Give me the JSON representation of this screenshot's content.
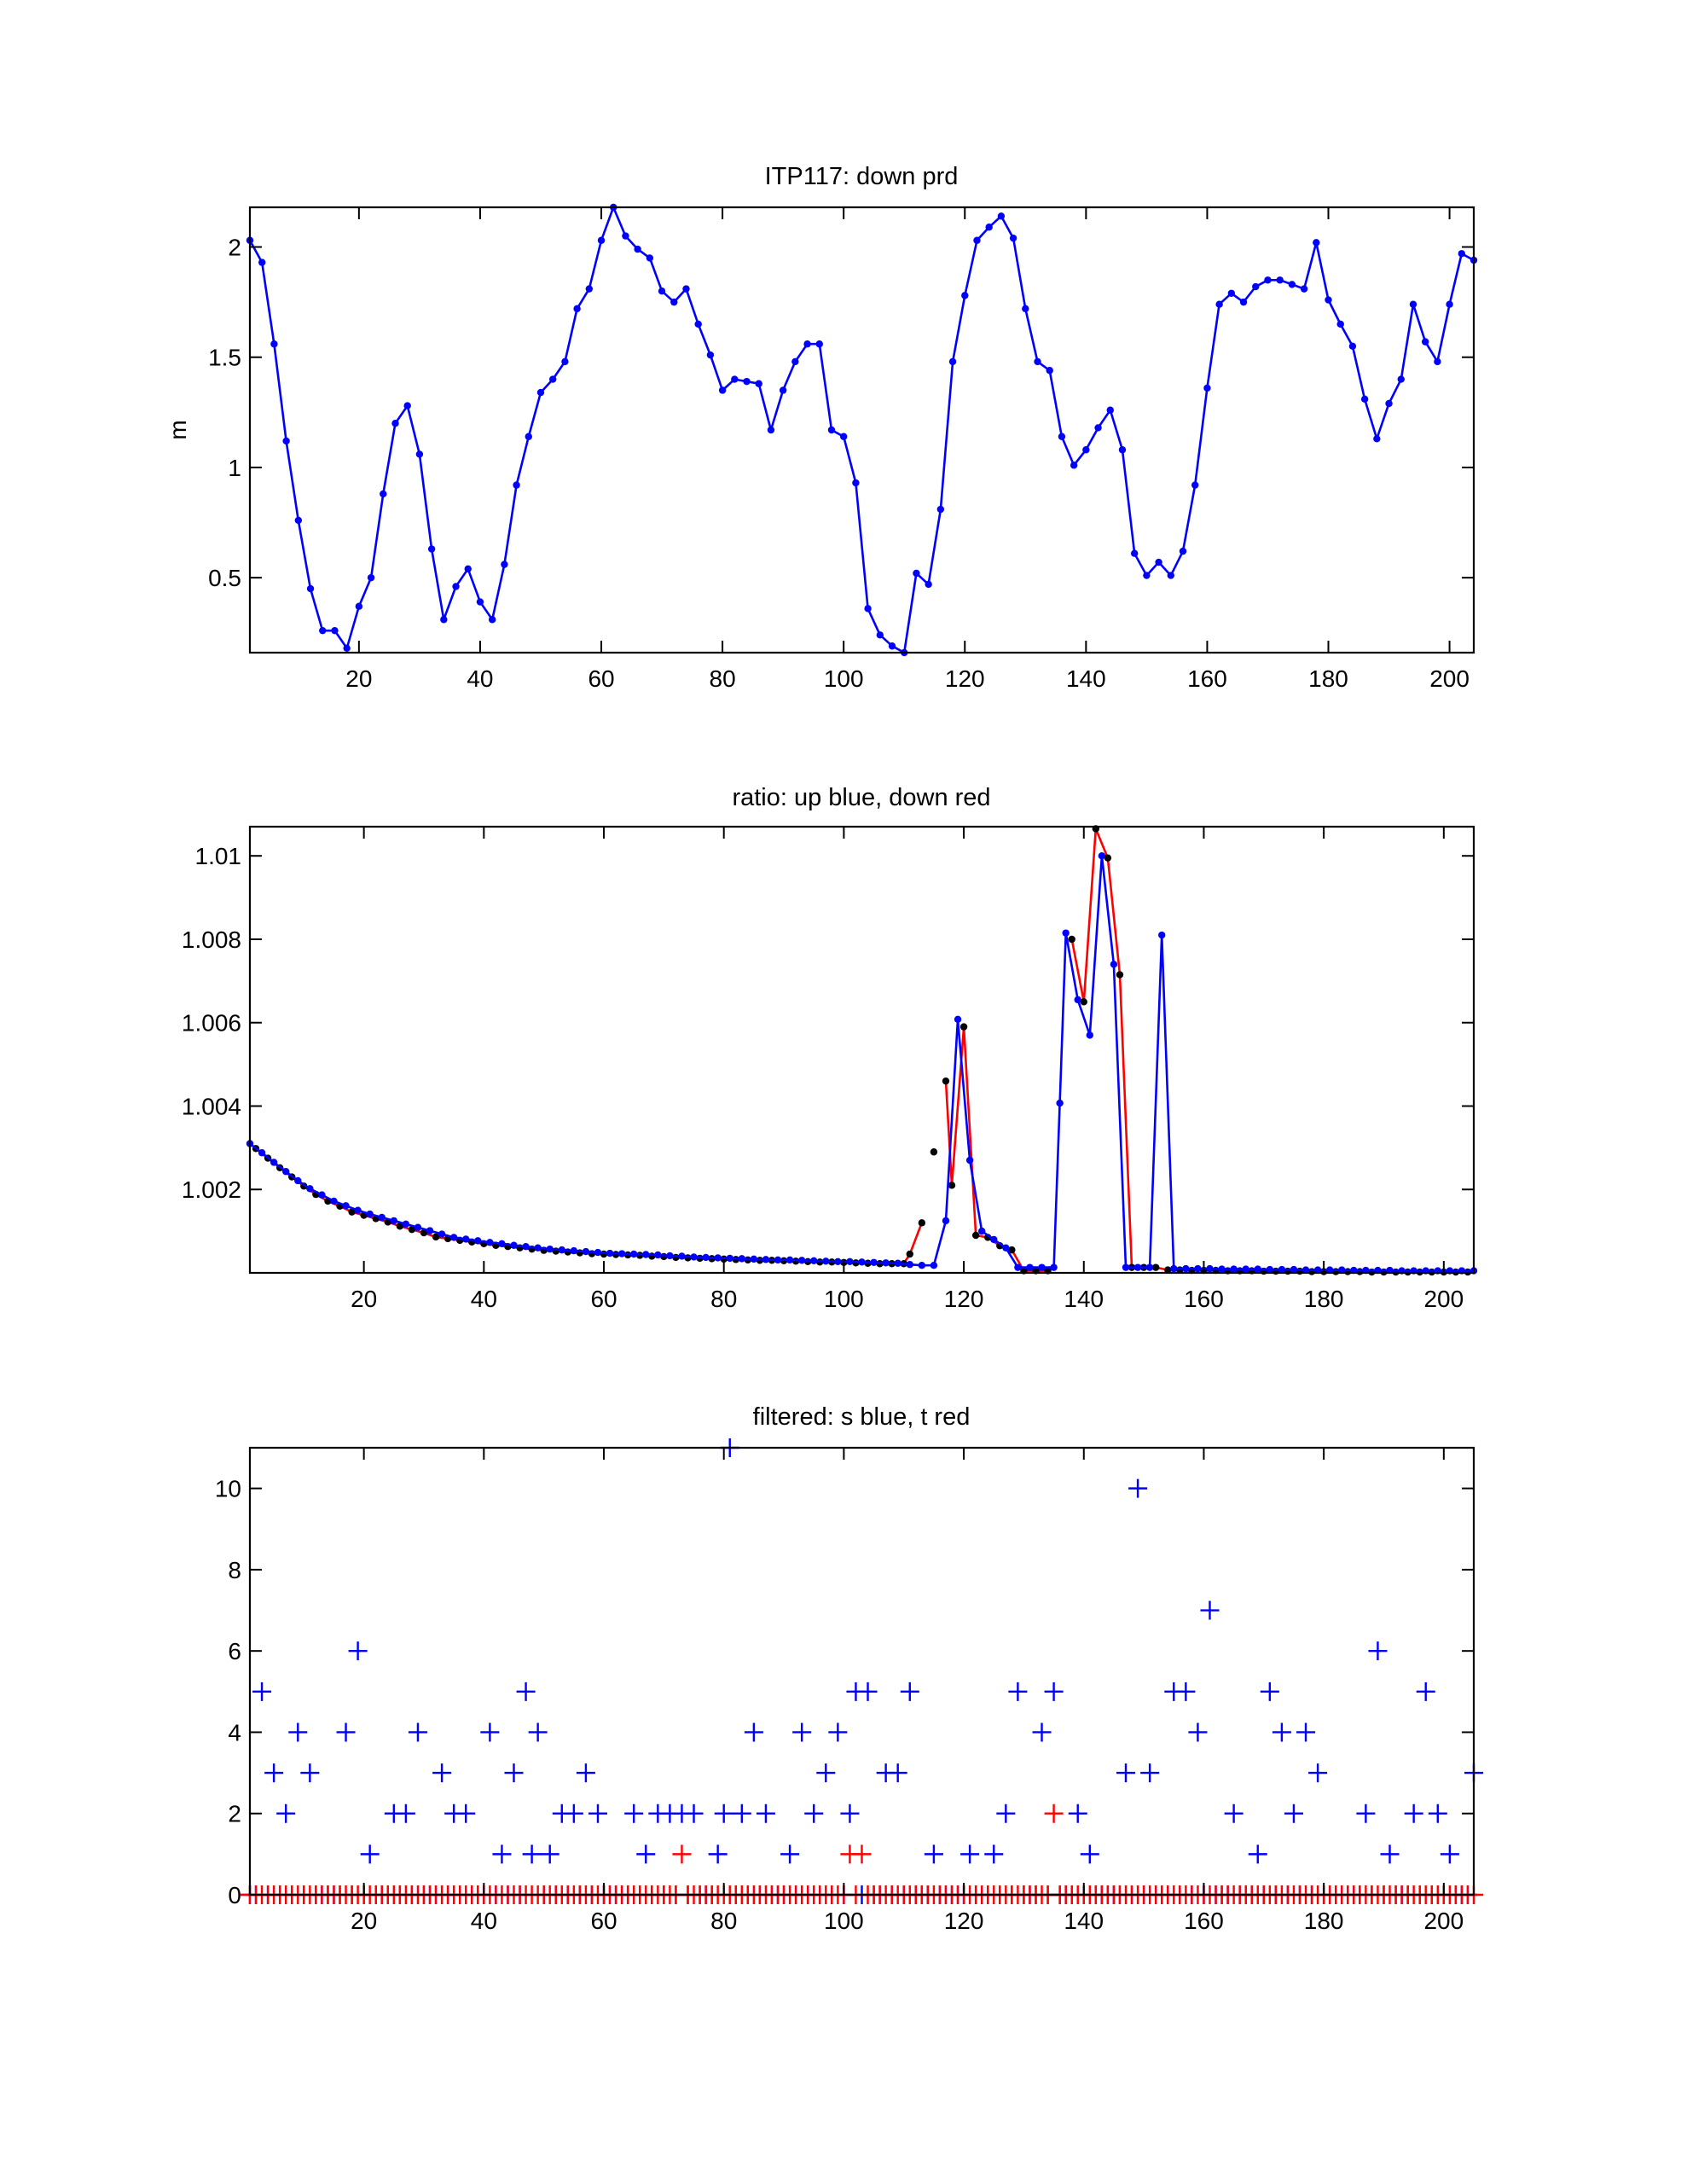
{
  "chart_data": [
    {
      "type": "line",
      "title": "ITP117: down prd",
      "ylabel": "m",
      "xlim": [
        2,
        204
      ],
      "ylim": [
        0.16,
        2.18
      ],
      "xticks": [
        20,
        40,
        60,
        80,
        100,
        120,
        140,
        160,
        180,
        200
      ],
      "yticks": [
        0.5,
        1,
        1.5,
        2
      ],
      "ytick_labels": [
        "0.5",
        "1",
        "1.5",
        "2"
      ],
      "grid": false,
      "series": [
        {
          "color": "#0000ff",
          "marker": "dot",
          "x": [
            2,
            4,
            6,
            8,
            10,
            12,
            14,
            16,
            18,
            20,
            22,
            24,
            26,
            28,
            30,
            32,
            34,
            36,
            38,
            40,
            42,
            44,
            46,
            48,
            50,
            52,
            54,
            56,
            58,
            60,
            62,
            64,
            66,
            68,
            70,
            72,
            74,
            76,
            78,
            80,
            82,
            84,
            86,
            88,
            90,
            92,
            94,
            96,
            98,
            100,
            102,
            104,
            106,
            108,
            110,
            112,
            114,
            116,
            118,
            120,
            122,
            124,
            126,
            128,
            130,
            132,
            134,
            136,
            138,
            140,
            142,
            144,
            146,
            148,
            150,
            152,
            154,
            156,
            158,
            160,
            162,
            164,
            166,
            168,
            170,
            172,
            174,
            176,
            178,
            180,
            182,
            184,
            186,
            188,
            190,
            192,
            194,
            196,
            198,
            200,
            202,
            204
          ],
          "y": [
            2.03,
            1.93,
            1.56,
            1.12,
            0.76,
            0.45,
            0.26,
            0.26,
            0.18,
            0.37,
            0.5,
            0.88,
            1.2,
            1.28,
            1.06,
            0.63,
            0.31,
            0.46,
            0.54,
            0.39,
            0.31,
            0.56,
            0.92,
            1.14,
            1.34,
            1.4,
            1.48,
            1.72,
            1.81,
            2.03,
            2.18,
            2.05,
            1.99,
            1.95,
            1.8,
            1.75,
            1.81,
            1.65,
            1.51,
            1.35,
            1.4,
            1.39,
            1.38,
            1.17,
            1.35,
            1.48,
            1.56,
            1.56,
            1.17,
            1.14,
            0.93,
            0.36,
            0.24,
            0.19,
            0.16,
            0.52,
            0.47,
            0.81,
            1.48,
            1.78,
            2.03,
            2.09,
            2.14,
            2.04,
            1.72,
            1.48,
            1.44,
            1.14,
            1.01,
            1.08,
            1.18,
            1.26,
            1.08,
            0.61,
            0.51,
            0.57,
            0.51,
            0.62,
            0.92,
            1.36,
            1.74,
            1.79,
            1.75,
            1.82,
            1.85,
            1.85,
            1.83,
            1.81,
            2.02,
            1.76,
            1.65,
            1.55,
            1.31,
            1.13,
            1.29,
            1.4,
            1.74,
            1.57,
            1.48,
            1.74,
            1.97,
            1.94
          ]
        }
      ]
    },
    {
      "type": "line",
      "title": "ratio: up blue, down red",
      "xlim": [
        1,
        205
      ],
      "ylim": [
        1.0,
        1.0107
      ],
      "xticks": [
        20,
        40,
        60,
        80,
        100,
        120,
        140,
        160,
        180,
        200
      ],
      "yticks": [
        1.002,
        1.004,
        1.006,
        1.008,
        1.01
      ],
      "ytick_labels": [
        "1.002",
        "1.004",
        "1.006",
        "1.008",
        "1.01"
      ],
      "grid": false,
      "series": [
        {
          "color": "#ff0000",
          "marker_color": "#000000",
          "marker": "dot",
          "x": [
            2,
            4,
            6,
            8,
            10,
            12,
            14,
            16,
            18,
            20,
            22,
            24,
            26,
            28,
            30,
            32,
            34,
            36,
            38,
            40,
            42,
            44,
            46,
            48,
            50,
            52,
            54,
            56,
            58,
            60,
            62,
            64,
            66,
            68,
            70,
            72,
            74,
            76,
            78,
            80,
            82,
            84,
            86,
            88,
            90,
            92,
            94,
            96,
            98,
            100,
            102,
            104,
            106,
            108,
            110,
            111,
            113,
            114,
            115,
            116,
            117,
            118,
            120,
            122,
            124,
            126,
            128,
            130,
            132,
            134,
            136,
            138,
            140,
            142,
            144,
            146,
            148,
            150,
            152,
            154,
            156,
            158,
            160,
            162,
            164,
            166,
            168,
            170,
            172,
            174,
            176,
            178,
            180,
            182,
            184,
            186,
            188,
            190,
            192,
            194,
            196,
            198,
            200,
            202,
            204
          ],
          "y": [
            1.00298,
            1.00275,
            1.00252,
            1.0023,
            1.00208,
            1.00188,
            1.00172,
            1.0016,
            1.00146,
            1.00138,
            1.0013,
            1.00122,
            1.00112,
            1.00104,
            1.00096,
            1.00086,
            1.00082,
            1.00078,
            1.00074,
            1.0007,
            1.00066,
            1.00063,
            1.0006,
            1.00057,
            1.00054,
            1.00052,
            1.0005,
            1.00048,
            1.00046,
            1.00045,
            1.00044,
            1.00043,
            1.00042,
            1.0004,
            1.00039,
            1.00037,
            1.00036,
            1.00035,
            1.00034,
            1.00033,
            1.00032,
            1.00031,
            1.0003,
            1.0003,
            1.00029,
            1.00028,
            1.00027,
            1.00026,
            1.00026,
            1.00025,
            1.00024,
            1.00023,
            1.00022,
            1.00022,
            1.00022,
            1.00045,
            1.0012,
            null,
            1.0029,
            null,
            1.0046,
            1.0021,
            1.0059,
            1.0009,
            1.00085,
            1.00065,
            1.00055,
            1.00005,
            1.00005,
            1.00005,
            null,
            1.008,
            1.0065,
            1.01065,
            1.00995,
            1.00715,
            1.00013,
            1.00013,
            1.00013,
            1.00007,
            1.00007,
            1.00006,
            1.00006,
            1.00006,
            1.00005,
            1.00005,
            1.00005,
            1.00004,
            1.00004,
            1.00004,
            1.00004,
            1.00003,
            1.00003,
            1.00003,
            1.00003,
            1.00003,
            1.00002,
            1.00002,
            1.00002,
            1.00002,
            1.00002,
            1.00002,
            1.00002,
            1.00002,
            1.00002
          ]
        },
        {
          "color": "#0000ff",
          "marker_color": "#0000ff",
          "marker": "dot",
          "x": [
            1,
            3,
            5,
            7,
            9,
            11,
            13,
            15,
            17,
            19,
            21,
            23,
            25,
            27,
            29,
            31,
            33,
            35,
            37,
            39,
            41,
            43,
            45,
            47,
            49,
            51,
            53,
            55,
            57,
            59,
            61,
            63,
            65,
            67,
            69,
            71,
            73,
            75,
            77,
            79,
            81,
            83,
            85,
            87,
            89,
            91,
            93,
            95,
            97,
            99,
            101,
            103,
            105,
            107,
            109,
            111,
            113,
            115,
            117,
            119,
            121,
            123,
            125,
            127,
            129,
            131,
            133,
            135,
            136,
            137,
            139,
            141,
            143,
            145,
            147,
            149,
            151,
            153,
            155,
            157,
            159,
            161,
            163,
            165,
            167,
            169,
            171,
            173,
            175,
            177,
            179,
            181,
            183,
            185,
            187,
            189,
            191,
            193,
            195,
            197,
            199,
            201,
            203,
            205
          ],
          "y": [
            1.0031,
            1.00288,
            1.00265,
            1.00243,
            1.00221,
            1.00202,
            1.00187,
            1.00172,
            1.00161,
            1.0015,
            1.00141,
            1.00133,
            1.00125,
            1.00117,
            1.00109,
            1.00101,
            1.00093,
            1.00085,
            1.00081,
            1.00077,
            1.00073,
            1.0007,
            1.00066,
            1.00063,
            1.0006,
            1.00057,
            1.00055,
            1.00053,
            1.00051,
            1.00049,
            1.00047,
            1.00046,
            1.00045,
            1.00044,
            1.00043,
            1.00041,
            1.0004,
            1.00038,
            1.00037,
            1.00036,
            1.00035,
            1.00034,
            1.00033,
            1.00032,
            1.00031,
            1.00031,
            1.0003,
            1.00029,
            1.00028,
            1.00027,
            1.00027,
            1.00026,
            1.00025,
            1.00024,
            1.00023,
            1.0002,
            1.00018,
            1.00018,
            1.00125,
            1.00608,
            1.0027,
            1.001,
            1.0008,
            1.0006,
            1.00013,
            1.00013,
            1.00013,
            1.00013,
            1.00407,
            1.00815,
            1.00655,
            1.0057,
            1.01,
            1.0074,
            1.00013,
            1.00013,
            1.00013,
            1.0081,
            1.0001,
            1.0001,
            1.0001,
            1.0001,
            1.00009,
            1.00009,
            1.00009,
            1.00009,
            1.00008,
            1.00008,
            1.00008,
            1.00007,
            1.00007,
            1.00007,
            1.00007,
            1.00006,
            1.00006,
            1.00006,
            1.00006,
            1.00005,
            1.00005,
            1.00005,
            1.00005,
            1.00005,
            1.00005,
            1.00005
          ]
        }
      ]
    },
    {
      "type": "scatter",
      "title": "filtered: s blue, t red",
      "xlim": [
        1,
        205
      ],
      "ylim": [
        0,
        11
      ],
      "xticks": [
        20,
        40,
        60,
        80,
        100,
        120,
        140,
        160,
        180,
        200
      ],
      "yticks": [
        0,
        2,
        4,
        6,
        8,
        10
      ],
      "ytick_labels": [
        "0",
        "2",
        "4",
        "6",
        "8",
        "10"
      ],
      "grid": false,
      "marker": "plus",
      "x_start": 1,
      "series": [
        {
          "color": "#0000ff",
          "values": [
            0,
            0,
            5,
            0,
            3,
            0,
            2,
            0,
            4,
            0,
            3,
            0,
            0,
            0,
            0,
            0,
            4,
            0,
            6,
            0,
            1,
            0,
            0,
            0,
            2,
            0,
            2,
            0,
            4,
            0,
            0,
            0,
            3,
            0,
            2,
            0,
            2,
            0,
            0,
            0,
            4,
            0,
            1,
            0,
            3,
            0,
            5,
            1,
            4,
            0,
            1,
            0,
            2,
            0,
            2,
            0,
            3,
            0,
            2,
            0,
            0,
            0,
            0,
            0,
            2,
            0,
            1,
            0,
            2,
            0,
            2,
            0,
            2,
            0,
            2,
            0,
            0,
            0,
            1,
            2,
            11,
            0,
            2,
            0,
            4,
            0,
            2,
            0,
            0,
            0,
            1,
            0,
            4,
            0,
            2,
            0,
            3,
            0,
            4,
            0,
            2,
            5,
            0,
            5,
            0,
            0,
            3,
            0,
            3,
            0,
            5,
            0,
            0,
            0,
            1,
            0,
            0,
            0,
            0,
            0,
            1,
            0,
            0,
            0,
            1,
            0,
            2,
            0,
            5,
            0,
            0,
            0,
            4,
            0,
            5,
            0,
            0,
            0,
            2,
            0,
            1,
            0,
            0,
            0,
            0,
            0,
            3,
            0,
            10,
            0,
            3,
            0,
            0,
            0,
            5,
            0,
            5,
            0,
            4,
            0,
            7,
            0,
            0,
            0,
            2,
            0,
            0,
            0,
            1,
            0,
            5,
            0,
            4,
            0,
            2,
            0,
            4,
            0,
            3,
            0,
            0,
            0,
            0,
            0,
            0,
            0,
            2,
            0,
            6,
            0,
            1,
            0,
            0,
            0,
            2,
            0,
            5,
            0,
            2,
            0,
            1,
            0,
            0,
            0,
            3
          ]
        },
        {
          "color": "#ff0000",
          "values": [
            0,
            0,
            0,
            0,
            0,
            0,
            0,
            0,
            0,
            0,
            0,
            0,
            0,
            0,
            0,
            0,
            0,
            0,
            0,
            0,
            0,
            0,
            0,
            0,
            0,
            0,
            0,
            0,
            0,
            0,
            0,
            0,
            0,
            0,
            0,
            0,
            0,
            0,
            0,
            0,
            0,
            0,
            0,
            0,
            0,
            0,
            0,
            0,
            0,
            0,
            0,
            0,
            0,
            0,
            0,
            0,
            0,
            0,
            0,
            0,
            0,
            0,
            0,
            0,
            0,
            0,
            0,
            0,
            0,
            0,
            0,
            0,
            1,
            0,
            0,
            0,
            0,
            0,
            0,
            0,
            0,
            0,
            0,
            0,
            0,
            0,
            0,
            0,
            0,
            0,
            0,
            0,
            0,
            0,
            0,
            0,
            0,
            0,
            0,
            0,
            1,
            0,
            1,
            0,
            0,
            0,
            0,
            0,
            0,
            0,
            0,
            0,
            0,
            0,
            0,
            0,
            0,
            0,
            0,
            0,
            0,
            0,
            0,
            0,
            0,
            0,
            0,
            0,
            0,
            0,
            0,
            0,
            0,
            0,
            2,
            0,
            0,
            0,
            0,
            0,
            0,
            0,
            0,
            0,
            0,
            0,
            0,
            0,
            0,
            0,
            0,
            0,
            0,
            0,
            0,
            0,
            0,
            0,
            0,
            0,
            0,
            0,
            0,
            0,
            0,
            0,
            0,
            0,
            0,
            0,
            0,
            0,
            0,
            0,
            0,
            0,
            0,
            0,
            0,
            0,
            0,
            0,
            0,
            0,
            0,
            0,
            0,
            0,
            0,
            0,
            0,
            0,
            0,
            0,
            0,
            0,
            0,
            0,
            0,
            0,
            0,
            0,
            0,
            0,
            0
          ]
        }
      ]
    }
  ]
}
